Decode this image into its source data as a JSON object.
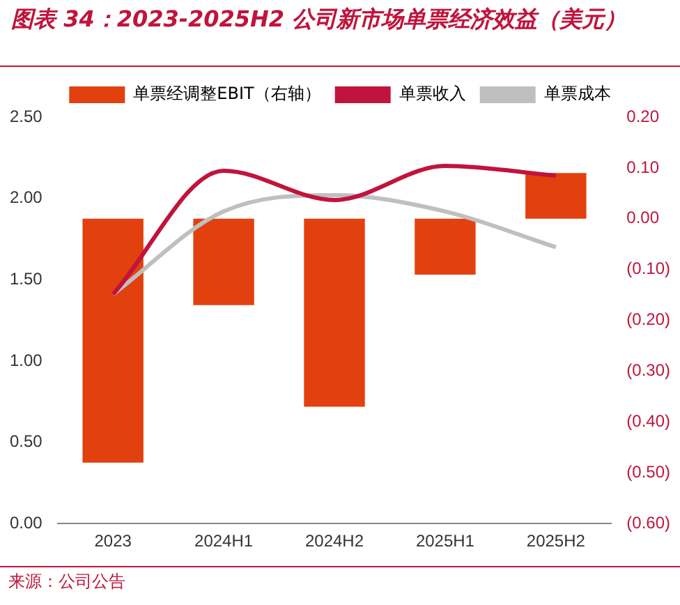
{
  "chart_data": {
    "type": "bar",
    "title": "图表 34：2023-2025H2 公司新市场单票经济效益（美元）",
    "categories": [
      "2023",
      "2024H1",
      "2024H2",
      "2025H1",
      "2025H2"
    ],
    "series": [
      {
        "name": "单票经调整EBIT（右轴）",
        "axis": "y2",
        "color": "#e2400e",
        "values": [
          -0.48,
          -0.17,
          -0.37,
          -0.11,
          0.09
        ]
      },
      {
        "name": "单票收入",
        "type": "line",
        "color": "#c0143c",
        "values": [
          1.41,
          2.17,
          1.99,
          2.2,
          2.14
        ]
      },
      {
        "name": "单票成本",
        "type": "line",
        "color": "#bfbfbf",
        "values": [
          1.41,
          1.92,
          2.02,
          1.92,
          1.7
        ]
      }
    ],
    "ylim": [
      0,
      2.5
    ],
    "yticks": [
      {
        "value": 0,
        "label": "0.00"
      },
      {
        "value": 0.5,
        "label": "0.50"
      },
      {
        "value": 1,
        "label": "1.00"
      },
      {
        "value": 1.5,
        "label": "1.50"
      },
      {
        "value": 2,
        "label": "2.00"
      },
      {
        "value": 2.5,
        "label": "2.50"
      }
    ],
    "y2lim": [
      -0.6,
      0.2
    ],
    "y2ticks": [
      {
        "value": -0.6,
        "label": "(0.60)"
      },
      {
        "value": -0.5,
        "label": "(0.50)"
      },
      {
        "value": -0.4,
        "label": "(0.40)"
      },
      {
        "value": -0.3,
        "label": "(0.30)"
      },
      {
        "value": -0.2,
        "label": "(0.20)"
      },
      {
        "value": -0.1,
        "label": "(0.10)"
      },
      {
        "value": 0,
        "label": "0.00"
      },
      {
        "value": 0.1,
        "label": "0.10"
      },
      {
        "value": 0.2,
        "label": "0.20"
      }
    ],
    "legend": "top",
    "grid": false,
    "annotations": [
      "来源：公司公告"
    ]
  }
}
